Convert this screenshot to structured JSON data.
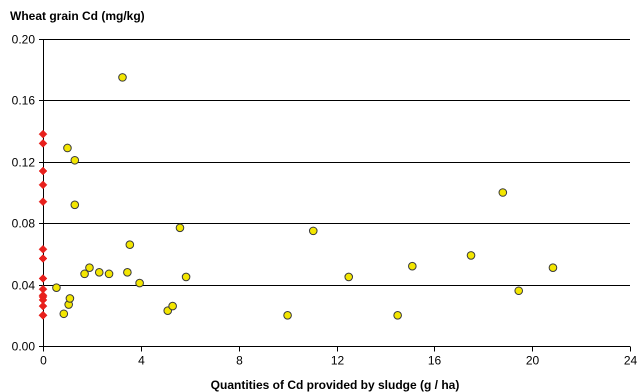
{
  "chart_data": {
    "type": "scatter",
    "title": "",
    "ylabel": "Wheat grain Cd (mg/kg)",
    "xlabel": "Quantities of Cd provided by sludge (g / ha)",
    "xlim": [
      0,
      24
    ],
    "ylim": [
      0,
      0.2
    ],
    "x_ticks": [
      "0",
      "4",
      "8",
      "12",
      "16",
      "20",
      "24"
    ],
    "y_ticks": [
      "0.00",
      "0.04",
      "0.08",
      "0.12",
      "0.16",
      "0.20"
    ],
    "grid": "horizontal",
    "colors": {
      "control": "#e8201c",
      "sludge": "#f3e600",
      "sludge_edge": "#3a3a3a",
      "grid": "#000000"
    },
    "series": [
      {
        "marker": "diamond",
        "x": [
          0,
          0,
          0,
          0,
          0,
          0,
          0,
          0,
          0,
          0,
          0,
          0,
          0,
          0,
          0
        ],
        "y": [
          0.138,
          0.132,
          0.114,
          0.105,
          0.094,
          0.063,
          0.057,
          0.044,
          0.037,
          0.033,
          0.032,
          0.03,
          0.026,
          0.02,
          0.02
        ]
      },
      {
        "marker": "circle",
        "x": [
          0.55,
          0.85,
          1.0,
          1.05,
          1.1,
          1.3,
          1.3,
          1.7,
          1.9,
          2.3,
          2.7,
          3.25,
          3.45,
          3.55,
          3.95,
          5.1,
          5.3,
          5.6,
          5.85,
          10.0,
          11.05,
          12.5,
          14.5,
          15.1,
          17.5,
          18.8,
          19.45,
          20.85
        ],
        "y": [
          0.038,
          0.021,
          0.129,
          0.027,
          0.031,
          0.121,
          0.092,
          0.047,
          0.051,
          0.048,
          0.047,
          0.175,
          0.048,
          0.066,
          0.041,
          0.023,
          0.026,
          0.077,
          0.045,
          0.02,
          0.075,
          0.045,
          0.02,
          0.052,
          0.059,
          0.1,
          0.036,
          0.051
        ]
      }
    ]
  }
}
